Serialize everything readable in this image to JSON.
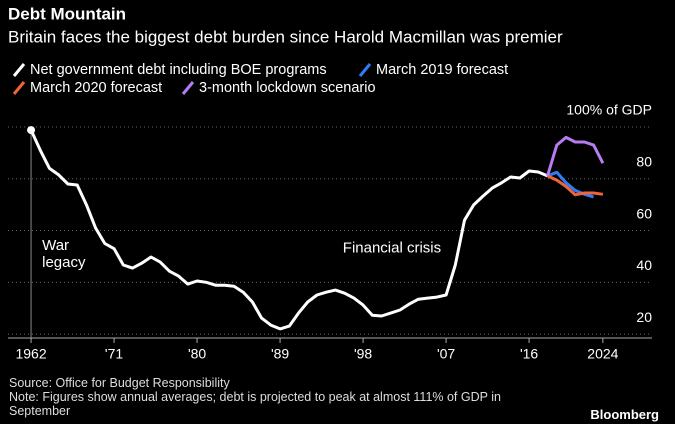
{
  "chart_data": {
    "type": "line",
    "title": "Debt Mountain",
    "subtitle": "Britain faces the biggest debt burden since Harold Macmillan was premier",
    "source": "Source: Office for Budget Responsibility",
    "note": "Note: Figures show annual averages; debt is projected to peak at almost 111% of GDP in September",
    "logo": "Bloomberg",
    "annotations": [
      {
        "lines": [
          "War",
          "legacy"
        ],
        "x": 1963.2,
        "y": 54
      },
      {
        "lines": [
          "Financial crisis"
        ],
        "x": 1995.8,
        "y": 53
      }
    ],
    "xlim": [
      1959.5,
      2026.4
    ],
    "xticks": [
      1962,
      {
        "value": 1971,
        "label": "'71"
      },
      {
        "value": 1980,
        "label": "'80"
      },
      {
        "value": 1989,
        "label": "'89"
      },
      {
        "value": 1998,
        "label": "'98"
      },
      {
        "value": 2007,
        "label": "'07"
      },
      {
        "value": 2016,
        "label": "'16"
      },
      2024
    ],
    "ylim": [
      18.5,
      100
    ],
    "yticks": [
      20,
      40,
      60,
      80,
      {
        "value": 100,
        "label": "100% of GDP"
      }
    ],
    "grid": true,
    "series": [
      {
        "name": "Net government debt including BOE programs",
        "color": "#ffffff",
        "x": [
          1962,
          1963,
          1964,
          1965,
          1966,
          1967,
          1968,
          1969,
          1970,
          1971,
          1972,
          1973,
          1974,
          1975,
          1976,
          1977,
          1978,
          1979,
          1980,
          1981,
          1982,
          1983,
          1984,
          1985,
          1986,
          1987,
          1988,
          1989,
          1990,
          1991,
          1992,
          1993,
          1994,
          1995,
          1996,
          1997,
          1998,
          1999,
          2000,
          2001,
          2002,
          2003,
          2004,
          2005,
          2006,
          2007,
          2008,
          2009,
          2010,
          2011,
          2012,
          2013,
          2014,
          2015,
          2016,
          2017,
          2018
        ],
        "values": [
          98.8,
          91,
          84,
          81.5,
          78,
          77.6,
          70,
          61,
          55,
          53,
          46.7,
          45.5,
          47.4,
          49.8,
          47.8,
          44.3,
          42.4,
          39.3,
          40.5,
          40,
          38.9,
          38.9,
          38.5,
          36.2,
          32.4,
          26.2,
          23.5,
          22,
          23.1,
          28.1,
          32.4,
          35.1,
          36.2,
          37,
          35.8,
          33.9,
          31.2,
          27.3,
          27,
          28.1,
          29.3,
          31.6,
          33.5,
          33.9,
          34.3,
          35.1,
          46.7,
          64,
          69.9,
          73.3,
          76.4,
          78.4,
          80.7,
          80.3,
          83,
          82.6,
          81.1
        ]
      },
      {
        "name": "March 2019 forecast",
        "color": "#2f7df6",
        "x": [
          2018,
          2019,
          2020,
          2021,
          2022,
          2023
        ],
        "values": [
          81.1,
          82.5,
          78.5,
          75.5,
          74,
          73
        ]
      },
      {
        "name": "March 2020 forecast",
        "color": "#f0643a",
        "x": [
          2018,
          2019,
          2020,
          2021,
          2022,
          2023,
          2024
        ],
        "values": [
          81.1,
          79.5,
          77,
          73.8,
          74.5,
          74.5,
          74
        ]
      },
      {
        "name": "3-month lockdown scenario",
        "color": "#b77cf2",
        "x": [
          2018,
          2019,
          2020,
          2021,
          2022,
          2023,
          2024
        ],
        "values": [
          81.1,
          93,
          96,
          94.2,
          94.2,
          93,
          86
        ]
      }
    ]
  }
}
